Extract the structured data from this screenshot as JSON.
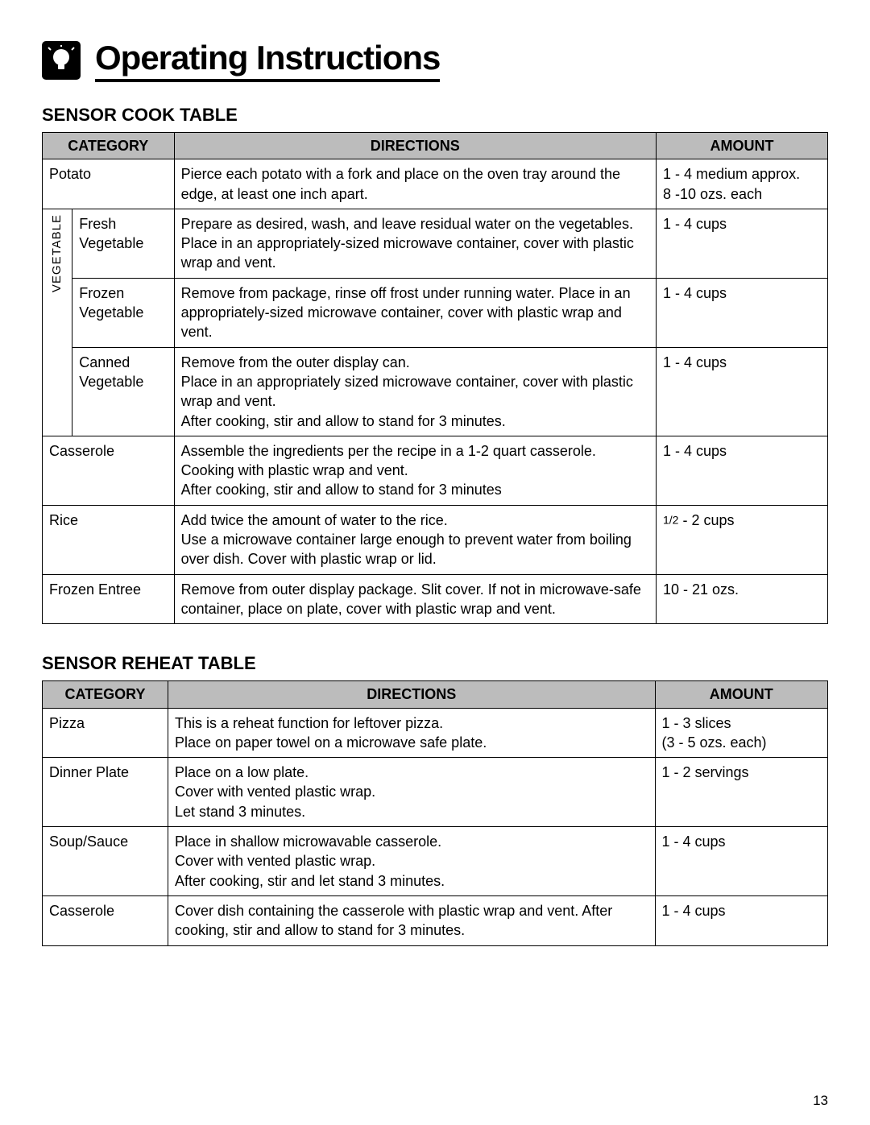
{
  "header": {
    "title": "Operating Instructions",
    "icon_name": "lightbulb-icon"
  },
  "sections": [
    {
      "heading": "SENSOR COOK TABLE",
      "columns": [
        "CATEGORY",
        "DIRECTIONS",
        "AMOUNT"
      ],
      "group_label": "VEGETABLE",
      "rows": {
        "potato": {
          "category": "Potato",
          "directions": "Pierce each potato with a fork and place on the oven tray around the edge, at least one inch apart.",
          "amount": "1 - 4 medium approx.\n8 -10 ozs. each"
        },
        "fresh_veg": {
          "category": "Fresh Vegetable",
          "directions": "Prepare as desired, wash, and leave residual water on the vegetables. Place in an appropriately-sized microwave container, cover with plastic wrap and vent.",
          "amount": "1 - 4 cups"
        },
        "frozen_veg": {
          "category": "Frozen Vegetable",
          "directions": "Remove from package, rinse off frost under running water. Place in an appropriately-sized microwave container, cover with plastic wrap and vent.",
          "amount": "1 - 4 cups"
        },
        "canned_veg": {
          "category": "Canned Vegetable",
          "directions": "Remove from the outer display can.\nPlace in an appropriately sized microwave container, cover with plastic wrap and vent.\nAfter cooking, stir and allow to stand for 3 minutes.",
          "amount": "1 - 4 cups"
        },
        "casserole": {
          "category": "Casserole",
          "directions": "Assemble the ingredients per the recipe in a 1-2 quart casserole. Cooking with plastic wrap and vent.\nAfter cooking, stir and allow to stand for 3 minutes",
          "amount": "1 - 4 cups"
        },
        "rice": {
          "category": "Rice",
          "directions": "Add twice the amount of water to the rice.\nUse a microwave container large enough to prevent water from boiling over dish. Cover with plastic wrap or lid.",
          "amount_prefix": "",
          "amount_fraction": "1/2",
          "amount_suffix": " - 2 cups"
        },
        "frozen_entree": {
          "category": "Frozen Entree",
          "directions": "Remove from outer display package. Slit cover. If not in microwave-safe container, place on plate, cover with plastic wrap and vent.",
          "amount": "10 - 21 ozs."
        }
      }
    },
    {
      "heading": "SENSOR REHEAT TABLE",
      "columns": [
        "CATEGORY",
        "DIRECTIONS",
        "AMOUNT"
      ],
      "rows": {
        "pizza": {
          "category": "Pizza",
          "directions": "This is a reheat function for leftover pizza.\nPlace on paper towel on a microwave safe plate.",
          "amount": "1 - 3 slices\n(3 - 5 ozs. each)"
        },
        "dinner_plate": {
          "category": "Dinner Plate",
          "directions": "Place on a low plate.\nCover with vented plastic wrap.\nLet stand 3 minutes.",
          "amount": "1 - 2 servings"
        },
        "soup_sauce": {
          "category": "Soup/Sauce",
          "directions": "Place in shallow microwavable casserole.\nCover with vented plastic wrap.\nAfter cooking, stir and let stand 3 minutes.",
          "amount": "1 - 4 cups"
        },
        "casserole": {
          "category": "Casserole",
          "directions": "Cover dish containing the casserole with plastic wrap and vent. After cooking, stir and allow to stand for 3 minutes.",
          "amount": "1 - 4 cups"
        }
      }
    }
  ],
  "page_number": "13",
  "style": {
    "page_bg": "#ffffff",
    "text_color": "#000000",
    "header_bg": "#bcbcbc",
    "border_color": "#000000",
    "title_underline_width": 4,
    "body_fontsize": 18,
    "heading_fontsize": 22,
    "title_fontsize": 42
  }
}
